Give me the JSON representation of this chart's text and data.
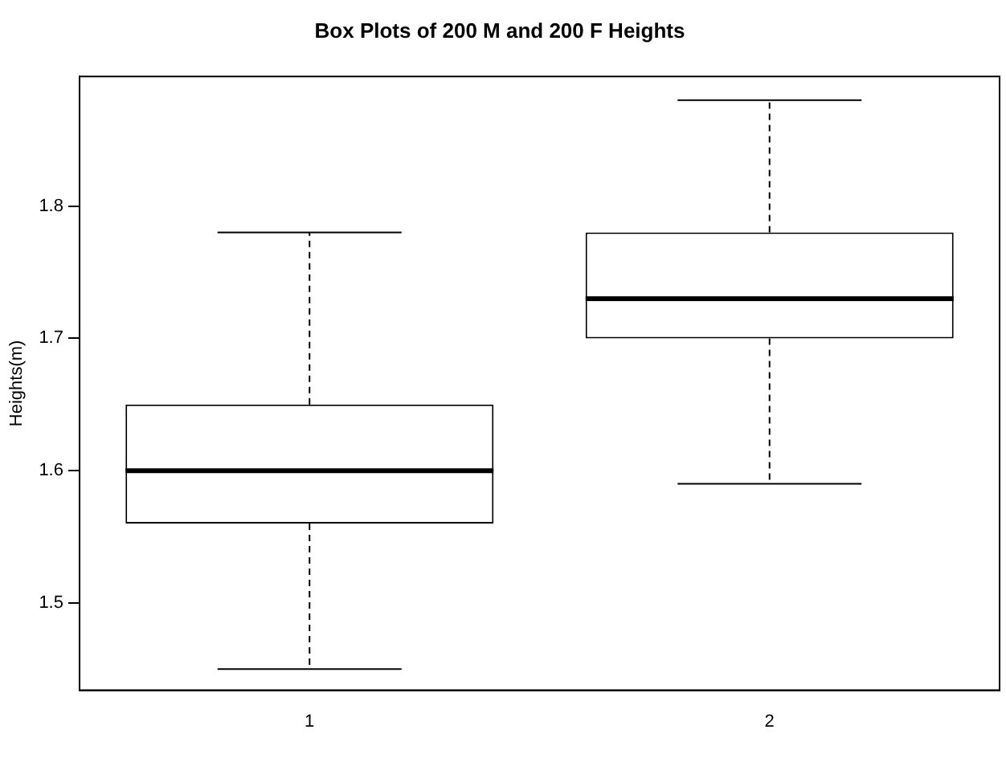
{
  "chart_data": {
    "type": "box",
    "title": "Box Plots of 200 M and 200 F Heights",
    "ylabel": "Heights(m)",
    "categories": [
      "1",
      "2"
    ],
    "boxes": [
      {
        "low": 1.45,
        "q1": 1.56,
        "median": 1.6,
        "q3": 1.65,
        "high": 1.78
      },
      {
        "low": 1.59,
        "q1": 1.7,
        "median": 1.73,
        "q3": 1.78,
        "high": 1.88
      }
    ],
    "ylim": [
      1.434,
      1.898
    ],
    "yticks": [
      1.5,
      1.6,
      1.7,
      1.8
    ],
    "grid": false,
    "legend": false,
    "line_style": "dashed"
  }
}
